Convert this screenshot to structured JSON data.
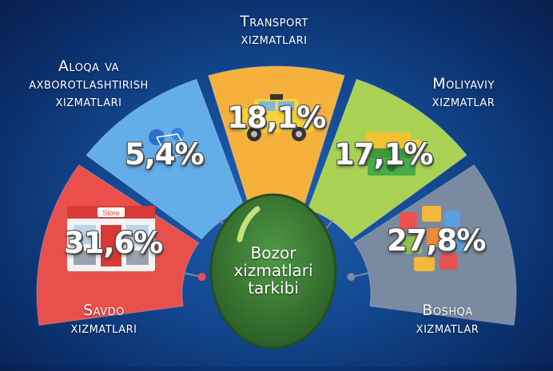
{
  "chart_data": {
    "type": "pie",
    "title": "Bozor xizmatlari tarkibi",
    "categories": [
      "Savdo xizmatlari",
      "Aloqa va axborotlashtirish xizmatlari",
      "Transport xizmatlari",
      "Moliyaviy xizmatlar",
      "Boshqa xizmatlar"
    ],
    "values": [
      31.6,
      5.4,
      18.1,
      17.1,
      27.8
    ],
    "value_labels": [
      "31,6%",
      "5,4%",
      "18,1%",
      "17,1%",
      "27,8%"
    ],
    "units": "%",
    "layout_style": "semicircle segments around central circle",
    "colors": [
      "#e9504c",
      "#63aee8",
      "#f6b03c",
      "#a9d255",
      "#7a8aa0"
    ]
  },
  "labels": {
    "center": [
      "Bozor",
      "xizmatlari",
      "tarkibi"
    ],
    "savdo": [
      "Savdo",
      "xizmatlari"
    ],
    "aloqa": [
      "Aloqa va",
      "axborotlashtirish",
      "xizmatlari"
    ],
    "transport": [
      "Transport",
      "xizmatlari"
    ],
    "moliya": [
      "Moliyaviy",
      "xizmatlar"
    ],
    "boshqa": [
      "Boshqa",
      "xizmatlar"
    ]
  },
  "colors": {
    "center_fill": "#3e7a35",
    "center_ring": "#c7e07a",
    "connector": "#7a8aa0"
  },
  "icons": [
    "store-icon",
    "social-network-icon",
    "taxi-icon",
    "money-icon",
    "services-collage-icon"
  ]
}
